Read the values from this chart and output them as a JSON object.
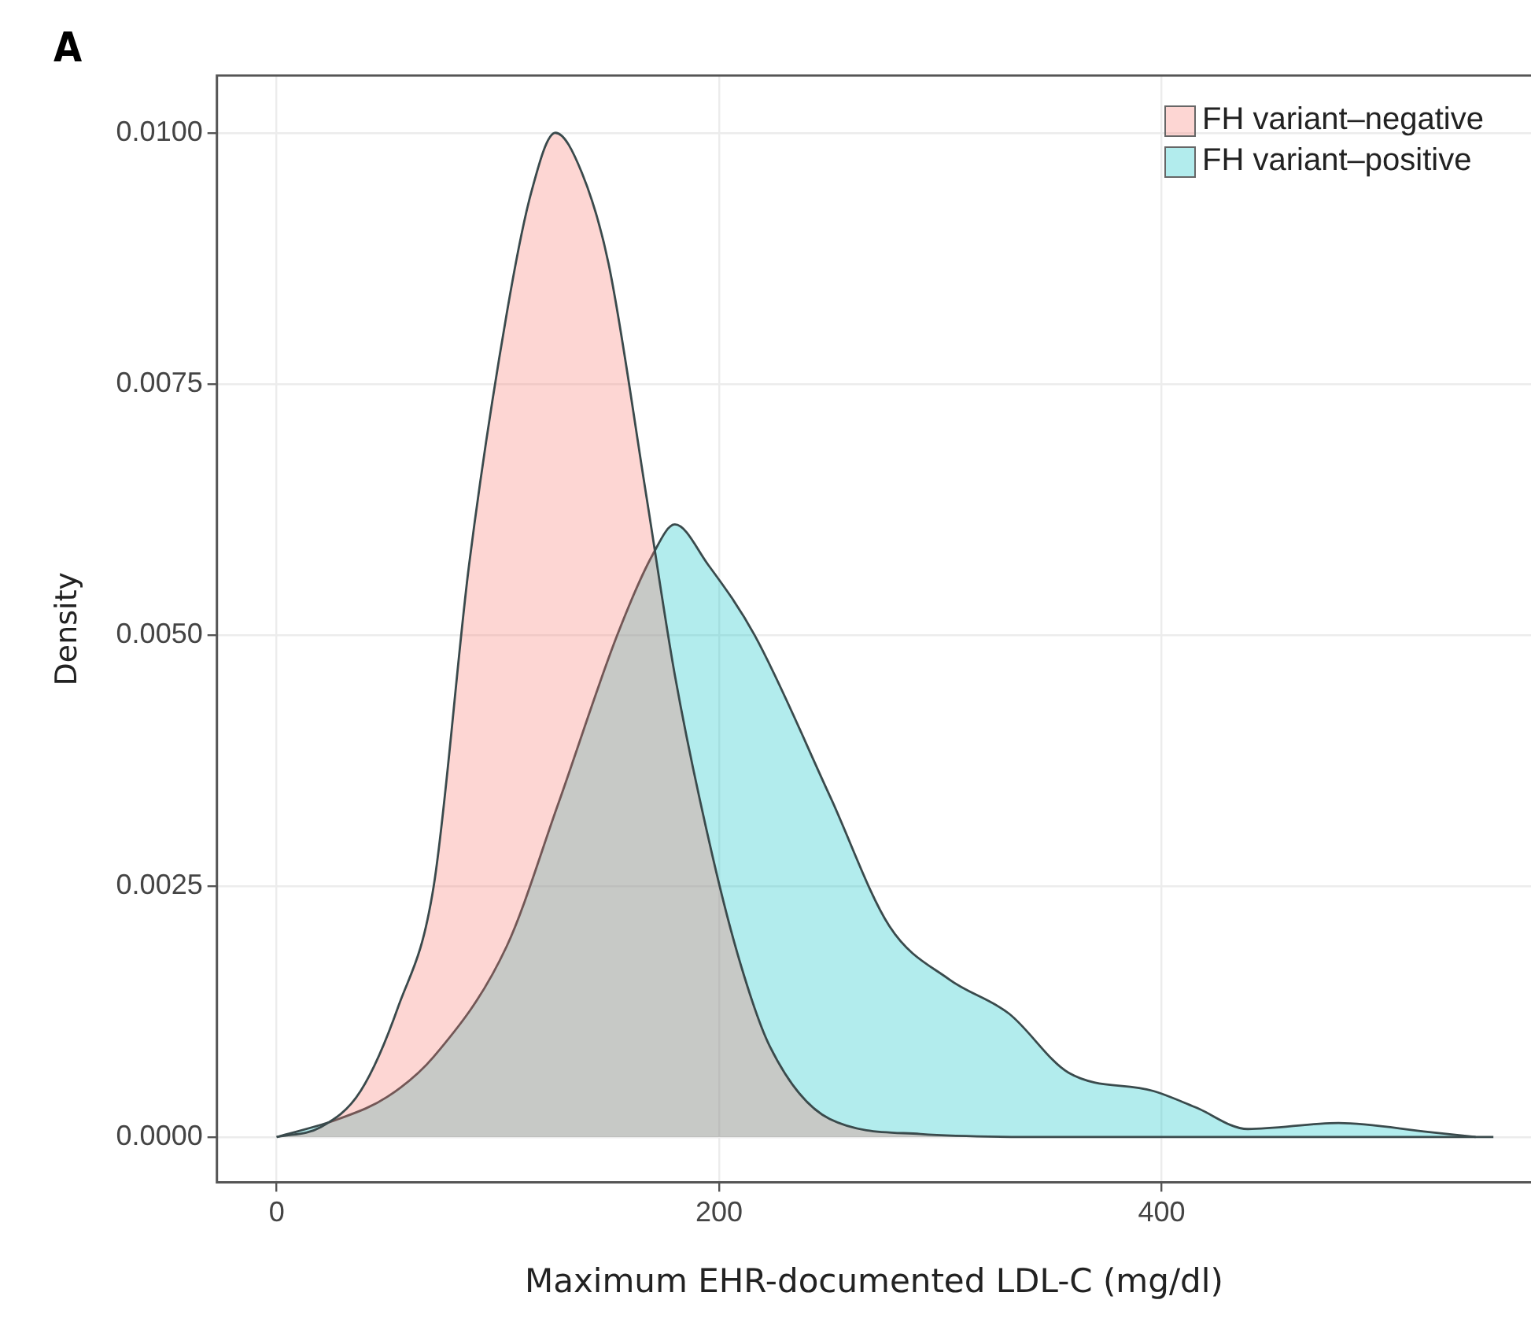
{
  "chart_data": {
    "type": "area",
    "xlabel": "Maximum EHR-documented LDL-C (mg/dl)",
    "ylabel": "Density",
    "annotations": [
      "A"
    ],
    "xlim": [
      -27,
      567
    ],
    "xticks": [
      0,
      200,
      400
    ],
    "ylim": [
      -0.00045,
      0.01057
    ],
    "yticks": [
      {
        "value": 0,
        "label": "0.0000"
      },
      {
        "value": 0.0025,
        "label": "0.0025"
      },
      {
        "value": 0.005,
        "label": "0.0050"
      },
      {
        "value": 0.0075,
        "label": "0.0075"
      },
      {
        "value": 0.01,
        "label": "0.0100"
      }
    ],
    "grid": true,
    "legend": "top right",
    "marker": "none",
    "line_style": "solid",
    "series": [
      {
        "name": "FH variant–negative",
        "color": "#f8766d",
        "x": [
          0,
          20,
          38,
          55,
          71,
          87,
          104,
          115,
          126,
          138,
          150,
          167,
          180,
          197,
          210,
          223,
          250,
          291,
          350,
          450,
          550
        ],
        "values": [
          0,
          0.0001,
          0.00046,
          0.0013,
          0.0025,
          0.0057,
          0.0082,
          0.0094,
          0.01,
          0.0096,
          0.0087,
          0.0064,
          0.0046,
          0.0028,
          0.0017,
          0.0009,
          0.00018,
          3e-05,
          0,
          0,
          0
        ]
      },
      {
        "name": "FH variant–positive",
        "color": "#00bfc4",
        "x": [
          0,
          28,
          50,
          71,
          104,
          127,
          154,
          170,
          180,
          195,
          216,
          250,
          277,
          304,
          331,
          358,
          396,
          415,
          439,
          480,
          521,
          542
        ],
        "values": [
          0,
          0.00018,
          0.0004,
          0.0008,
          0.0019,
          0.0033,
          0.005,
          0.0058,
          0.0061,
          0.0057,
          0.005,
          0.0034,
          0.0021,
          0.00157,
          0.00123,
          0.00064,
          0.00046,
          0.0003,
          8e-05,
          0.00014,
          5e-05,
          0
        ]
      }
    ]
  }
}
